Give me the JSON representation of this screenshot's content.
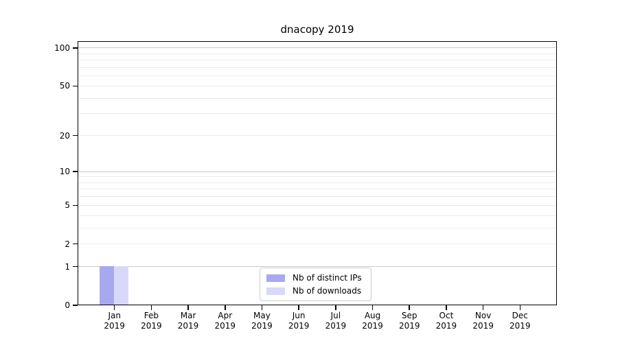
{
  "title": "dnacopy 2019",
  "legend": {
    "items": [
      {
        "label": "Nb of distinct IPs",
        "color": "#a8a8f0"
      },
      {
        "label": "Nb of downloads",
        "color": "#d8d9fa"
      }
    ]
  },
  "chart_data": {
    "type": "bar",
    "title": "dnacopy 2019",
    "categories": [
      "Jan 2019",
      "Feb 2019",
      "Mar 2019",
      "Apr 2019",
      "May 2019",
      "Jun 2019",
      "Jul 2019",
      "Aug 2019",
      "Sep 2019",
      "Oct 2019",
      "Nov 2019",
      "Dec 2019"
    ],
    "series": [
      {
        "name": "Nb of distinct IPs",
        "color": "#a8a8f0",
        "values": [
          1,
          0,
          0,
          0,
          0,
          0,
          0,
          0,
          0,
          0,
          0,
          0
        ]
      },
      {
        "name": "Nb of downloads",
        "color": "#d8d9fa",
        "values": [
          1,
          0,
          0,
          0,
          0,
          0,
          0,
          0,
          0,
          0,
          0,
          0
        ]
      }
    ],
    "xlabel": "",
    "ylabel": "",
    "y_scale": "log1p",
    "y_ticks": [
      0,
      1,
      2,
      5,
      10,
      20,
      50,
      100
    ],
    "y_major_gridlines": [
      1,
      10,
      100
    ],
    "y_minor_gridlines": [
      2,
      3,
      4,
      5,
      6,
      7,
      8,
      9,
      20,
      30,
      40,
      50,
      60,
      70,
      80,
      90
    ],
    "ylim": [
      0,
      113
    ],
    "grid": true,
    "legend_position": "bottom-center",
    "colors": {
      "major_grid": "#c9c9c9",
      "minor_grid": "#ebebeb",
      "axis": "#000000",
      "legend_border": "#cccccc"
    }
  }
}
